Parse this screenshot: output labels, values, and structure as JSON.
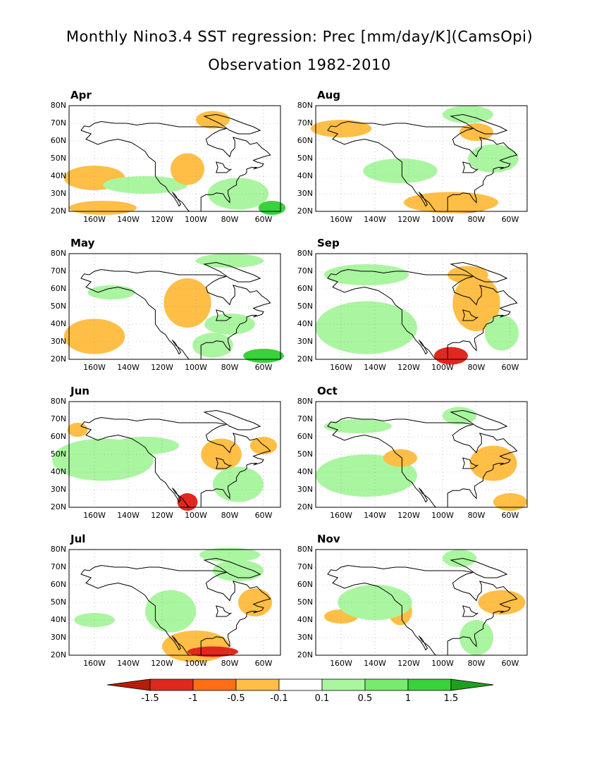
{
  "figure": {
    "title_line1": "Monthly Nino3.4 SST regression: Prec [mm/day/K](CamsOpi)",
    "title_line2": "Observation 1982-2010"
  },
  "axes": {
    "lat_ticks": [
      "80N",
      "70N",
      "60N",
      "50N",
      "40N",
      "30N",
      "20N"
    ],
    "lon_ticks": [
      "160W",
      "140W",
      "120W",
      "100W",
      "80W",
      "60W"
    ]
  },
  "panels": [
    {
      "label": "Apr",
      "col": 0,
      "row": 0
    },
    {
      "label": "Aug",
      "col": 1,
      "row": 0
    },
    {
      "label": "May",
      "col": 0,
      "row": 1
    },
    {
      "label": "Sep",
      "col": 1,
      "row": 1
    },
    {
      "label": "Jun",
      "col": 0,
      "row": 2
    },
    {
      "label": "Oct",
      "col": 1,
      "row": 2
    },
    {
      "label": "Jul",
      "col": 0,
      "row": 3
    },
    {
      "label": "Nov",
      "col": 1,
      "row": 3
    }
  ],
  "colorbar": {
    "labels": [
      "-1.5",
      "-1",
      "-0.5",
      "-0.1",
      "0.1",
      "0.5",
      "1",
      "1.5"
    ],
    "colors": [
      "#b41e0a",
      "#e0281e",
      "#ff6e14",
      "#ffbe46",
      "#ffffff",
      "#aaf5a0",
      "#78eb6e",
      "#37d23c",
      "#1ea01e"
    ]
  }
}
